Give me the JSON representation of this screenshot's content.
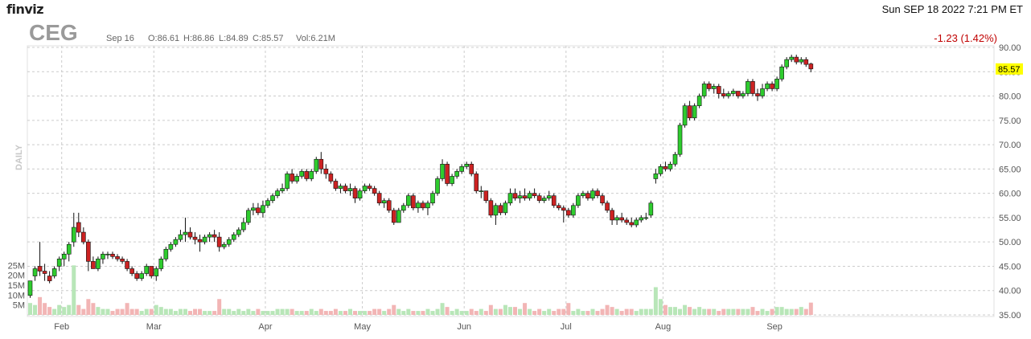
{
  "header": {
    "brand": "finviz",
    "datetime": "Sun SEP 18 2022 7:21 PM ET",
    "ticker": "CEG",
    "date": "Sep 16",
    "open": "O:86.61",
    "high": "H:86.86",
    "low": "L:84.89",
    "close": "C:85.57",
    "volume": "Vol:6.21M",
    "change": "-1.23 (1.42%)"
  },
  "colors": {
    "up": "#2ecc2e",
    "down": "#cc2222",
    "vol_up": "#b8e6b8",
    "vol_down": "#f2b5b5",
    "grid": "#cccccc",
    "last_price_bg": "#ffff00"
  },
  "chart_data": {
    "type": "candlestick",
    "period_label": "DAILY",
    "last_price": "85.57",
    "y_axis": {
      "min": 35,
      "max": 90,
      "ticks": [
        "90.00",
        "85.00",
        "80.00",
        "75.00",
        "70.00",
        "65.00",
        "60.00",
        "55.00",
        "50.00",
        "45.00",
        "40.00",
        "35.00"
      ]
    },
    "volume_axis": {
      "min": 0,
      "max": 30,
      "ticks": [
        "25M",
        "20M",
        "15M",
        "10M",
        "5M"
      ]
    },
    "x_labels": [
      {
        "label": "Feb",
        "index": 7
      },
      {
        "label": "Mar",
        "index": 26
      },
      {
        "label": "Apr",
        "index": 49
      },
      {
        "label": "May",
        "index": 69
      },
      {
        "label": "Jun",
        "index": 90
      },
      {
        "label": "Jul",
        "index": 111
      },
      {
        "label": "Aug",
        "index": 131
      },
      {
        "label": "Sep",
        "index": 154
      }
    ],
    "candles": [
      [
        39,
        42,
        38.5,
        42,
        6
      ],
      [
        43,
        45,
        42,
        44.5,
        5
      ],
      [
        45,
        50,
        43,
        44,
        9
      ],
      [
        44,
        45.5,
        42,
        43.5,
        6
      ],
      [
        43,
        44,
        41.5,
        42,
        4
      ],
      [
        43,
        45,
        42.5,
        44.5,
        3
      ],
      [
        45,
        47,
        44,
        46.5,
        5
      ],
      [
        46.5,
        48,
        45,
        47.5,
        4
      ],
      [
        47.5,
        50,
        46,
        49.5,
        5
      ],
      [
        50,
        56,
        49,
        53,
        25
      ],
      [
        54,
        56,
        51,
        52,
        5
      ],
      [
        52,
        53,
        49.5,
        50,
        3
      ],
      [
        50,
        50.5,
        44,
        46,
        8
      ],
      [
        46,
        47,
        44.5,
        44.5,
        6
      ],
      [
        44.5,
        47,
        44,
        46.5,
        4
      ],
      [
        46.5,
        48,
        45.5,
        47.5,
        3
      ],
      [
        47.5,
        48,
        46.5,
        47.5,
        3
      ],
      [
        47.5,
        48,
        46.5,
        47,
        2
      ],
      [
        47,
        47.5,
        46,
        46.5,
        3
      ],
      [
        46.5,
        47,
        45.5,
        46,
        3
      ],
      [
        46,
        46.5,
        44,
        44.5,
        6
      ],
      [
        44.5,
        45,
        43,
        43.5,
        3
      ],
      [
        43.5,
        44,
        42,
        42.5,
        3
      ],
      [
        42.5,
        44,
        42,
        43.5,
        2
      ],
      [
        43.5,
        45.5,
        43,
        45,
        3
      ],
      [
        45,
        45,
        42.5,
        43,
        3
      ],
      [
        43,
        45,
        42,
        44.5,
        5
      ],
      [
        44.5,
        47,
        44,
        46.5,
        4
      ],
      [
        46.5,
        49,
        46,
        48.5,
        3
      ],
      [
        48.5,
        50,
        48,
        49.5,
        3
      ],
      [
        49.5,
        51,
        49,
        50.5,
        2
      ],
      [
        50.5,
        52.5,
        50,
        51.5,
        3
      ],
      [
        51.5,
        55,
        50,
        52,
        3
      ],
      [
        52,
        53,
        50.5,
        51,
        2
      ],
      [
        51,
        52,
        49.5,
        50.5,
        3
      ],
      [
        50.5,
        51.5,
        48,
        50,
        3
      ],
      [
        50,
        51.5,
        49.5,
        51,
        2
      ],
      [
        51,
        52,
        50,
        51.5,
        2
      ],
      [
        51.5,
        52.5,
        50,
        51,
        2
      ],
      [
        51,
        52,
        48,
        49,
        8
      ],
      [
        49,
        50,
        48.5,
        49.5,
        3
      ],
      [
        49.5,
        51,
        49,
        50.5,
        3
      ],
      [
        50.5,
        52,
        50,
        51.5,
        2
      ],
      [
        51.5,
        53,
        51,
        52.5,
        3
      ],
      [
        52.5,
        55,
        52,
        54,
        2
      ],
      [
        54,
        57,
        53.5,
        56.5,
        3
      ],
      [
        56.5,
        58,
        55.5,
        57,
        2
      ],
      [
        57,
        58,
        55.5,
        56,
        3
      ],
      [
        56,
        58.5,
        55,
        57.5,
        2
      ],
      [
        57.5,
        59,
        57,
        58.5,
        2
      ],
      [
        58.5,
        60,
        58,
        59.5,
        2
      ],
      [
        59.5,
        61,
        59,
        60.5,
        3
      ],
      [
        60.5,
        62,
        60,
        61,
        3
      ],
      [
        61,
        64.5,
        60.5,
        64,
        3
      ],
      [
        64,
        65,
        62,
        62.5,
        3
      ],
      [
        62.5,
        64,
        62,
        63.5,
        2
      ],
      [
        63.5,
        65,
        63,
        64.5,
        2
      ],
      [
        64.5,
        65,
        62.5,
        63,
        2
      ],
      [
        63,
        65,
        62.5,
        64.5,
        3
      ],
      [
        64.5,
        67.5,
        64,
        67,
        2
      ],
      [
        67,
        68.5,
        64,
        65,
        3
      ],
      [
        65,
        66,
        63,
        64,
        2
      ],
      [
        64,
        64.5,
        62,
        62.5,
        2
      ],
      [
        62.5,
        63,
        60.5,
        61,
        3
      ],
      [
        61,
        62,
        60,
        61.5,
        2
      ],
      [
        61.5,
        62,
        60,
        60.5,
        2
      ],
      [
        60.5,
        62,
        59.5,
        61,
        3
      ],
      [
        61,
        61.5,
        58,
        59,
        2
      ],
      [
        59,
        61,
        58.5,
        60.5,
        2
      ],
      [
        60.5,
        62,
        60,
        61.5,
        2
      ],
      [
        61.5,
        62,
        60.5,
        61,
        2
      ],
      [
        61,
        61.5,
        59.5,
        60,
        3
      ],
      [
        60,
        60.5,
        57.5,
        58,
        3
      ],
      [
        58,
        59,
        57,
        58.5,
        2
      ],
      [
        58.5,
        59,
        56,
        56.5,
        3
      ],
      [
        56.5,
        57,
        53.5,
        54,
        5
      ],
      [
        54,
        57,
        54,
        56.5,
        3
      ],
      [
        56.5,
        58,
        56,
        57.5,
        2
      ],
      [
        57.5,
        60,
        57,
        59.5,
        3
      ],
      [
        59.5,
        60,
        56.5,
        57,
        2
      ],
      [
        57,
        58.5,
        56,
        58,
        2
      ],
      [
        58,
        58.5,
        56.5,
        57,
        2
      ],
      [
        57,
        58.5,
        55.5,
        58,
        3
      ],
      [
        58,
        60.5,
        57.5,
        60,
        2
      ],
      [
        60,
        63.5,
        59.5,
        63,
        3
      ],
      [
        63,
        67,
        62.5,
        66,
        6
      ],
      [
        66,
        66.5,
        61.5,
        62,
        4
      ],
      [
        62,
        64,
        61.5,
        63.5,
        2
      ],
      [
        63.5,
        65,
        63,
        64.5,
        3
      ],
      [
        64.5,
        66,
        64,
        65.5,
        2
      ],
      [
        65.5,
        66.5,
        65,
        66,
        2
      ],
      [
        66,
        66.5,
        63.5,
        64,
        3
      ],
      [
        64,
        64.5,
        60,
        60.5,
        2
      ],
      [
        60.5,
        61.5,
        59,
        60.5,
        3
      ],
      [
        60.5,
        60.5,
        58,
        58.5,
        2
      ],
      [
        58.5,
        59,
        55,
        55.5,
        5
      ],
      [
        55.5,
        58,
        53.5,
        57.5,
        3
      ],
      [
        57.5,
        58,
        55.5,
        56,
        3
      ],
      [
        56,
        58.5,
        55.5,
        58,
        5
      ],
      [
        58,
        61,
        57.5,
        60,
        4
      ],
      [
        60,
        61,
        58.5,
        59,
        4
      ],
      [
        59,
        60.5,
        58,
        59.5,
        3
      ],
      [
        59.5,
        61,
        58.5,
        59,
        6
      ],
      [
        59,
        60.5,
        58.5,
        60,
        3
      ],
      [
        60,
        61,
        59,
        59.5,
        2
      ],
      [
        59.5,
        60,
        58,
        58.5,
        3
      ],
      [
        58.5,
        59.5,
        58,
        59,
        2
      ],
      [
        59,
        60.5,
        58.5,
        59.5,
        3
      ],
      [
        59.5,
        60,
        57,
        57.5,
        2
      ],
      [
        57.5,
        58,
        56.5,
        57,
        3
      ],
      [
        57,
        57.5,
        54,
        56.5,
        3
      ],
      [
        56.5,
        57,
        55,
        55.5,
        6
      ],
      [
        55.5,
        58,
        55,
        57.5,
        2
      ],
      [
        57.5,
        60,
        57,
        59.5,
        3
      ],
      [
        59.5,
        60.5,
        59,
        60,
        2
      ],
      [
        60,
        60.5,
        58.5,
        59,
        2
      ],
      [
        59,
        61,
        58.5,
        60.5,
        3
      ],
      [
        60.5,
        61,
        59,
        59.5,
        2
      ],
      [
        59.5,
        60,
        57.5,
        58,
        3
      ],
      [
        58,
        58.5,
        56,
        56.5,
        5
      ],
      [
        56.5,
        57,
        53.5,
        54.5,
        4
      ],
      [
        54.5,
        55.5,
        53.5,
        55,
        3
      ],
      [
        55,
        56,
        54,
        54.5,
        2
      ],
      [
        54.5,
        55,
        53.5,
        54,
        3
      ],
      [
        54,
        55,
        53,
        53.5,
        3
      ],
      [
        53.5,
        55,
        53,
        54.5,
        2
      ],
      [
        54.5,
        55.5,
        54,
        55,
        3
      ],
      [
        55,
        56,
        54.5,
        55,
        3
      ],
      [
        55.5,
        58.5,
        55,
        58,
        3
      ],
      [
        63,
        65,
        62,
        64,
        14
      ],
      [
        64,
        66,
        63.5,
        65.5,
        8
      ],
      [
        65.5,
        66.5,
        64.5,
        65,
        5
      ],
      [
        65,
        66.5,
        64.5,
        66,
        4
      ],
      [
        66,
        68.5,
        65.5,
        68,
        4
      ],
      [
        68,
        74.5,
        67.5,
        74,
        3
      ],
      [
        74,
        78.5,
        73.5,
        78,
        5
      ],
      [
        78,
        79,
        75,
        75.5,
        4
      ],
      [
        75.5,
        78.5,
        75,
        78,
        3
      ],
      [
        78,
        80.5,
        77.5,
        80,
        4
      ],
      [
        80,
        83,
        79.5,
        82.5,
        3
      ],
      [
        82.5,
        83,
        81,
        81.5,
        3
      ],
      [
        81.5,
        82.5,
        80.5,
        82,
        3
      ],
      [
        82,
        82.5,
        79.5,
        80.5,
        2
      ],
      [
        80.5,
        81.5,
        79.5,
        80,
        3
      ],
      [
        80,
        81,
        79.5,
        80.5,
        3
      ],
      [
        80.5,
        81.5,
        80,
        81,
        3
      ],
      [
        81,
        81,
        79.5,
        80,
        3
      ],
      [
        80,
        81,
        79.5,
        80.5,
        3
      ],
      [
        80.5,
        83.5,
        80,
        83,
        3
      ],
      [
        83,
        83.5,
        80,
        80.5,
        4
      ],
      [
        80.5,
        81.5,
        79,
        80,
        2
      ],
      [
        80,
        82.5,
        79.5,
        81.5,
        3
      ],
      [
        81.5,
        83,
        81,
        82.5,
        2
      ],
      [
        82.5,
        83,
        81,
        81.5,
        3
      ],
      [
        81.5,
        84,
        81,
        83.5,
        4
      ],
      [
        83.5,
        86.5,
        83,
        86,
        4
      ],
      [
        86,
        88,
        85.5,
        87.5,
        3
      ],
      [
        87.5,
        88.5,
        87,
        88,
        3
      ],
      [
        88,
        88.5,
        86.5,
        87,
        3
      ],
      [
        87,
        88,
        86.5,
        87.5,
        4
      ],
      [
        87.5,
        88,
        86,
        86.5,
        3
      ],
      [
        86.61,
        86.86,
        84.89,
        85.57,
        6.21
      ]
    ]
  }
}
